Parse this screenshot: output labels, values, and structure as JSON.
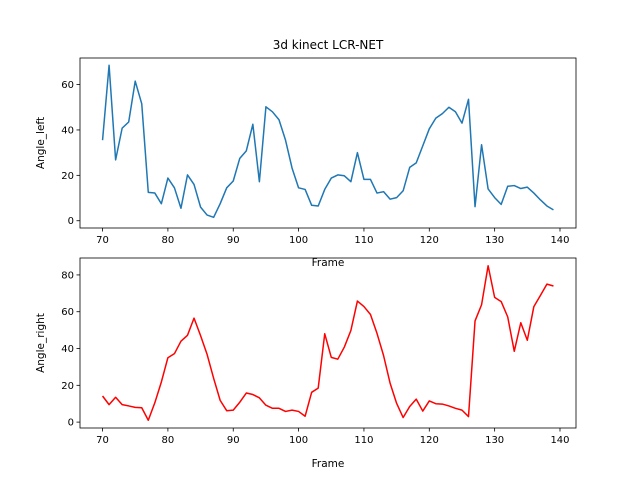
{
  "chart_data": [
    {
      "type": "line",
      "title": "3d kinect LCR-NET",
      "xlabel": "Frame",
      "ylabel": "Angle_left",
      "xlim": [
        66.55,
        142.45
      ],
      "ylim": [
        -3.2,
        71.7
      ],
      "xticks": [
        70,
        80,
        90,
        100,
        110,
        120,
        130,
        140
      ],
      "yticks": [
        0,
        20,
        40,
        60
      ],
      "grid": false,
      "series": [
        {
          "color": "#1f77b4",
          "x": [
            70,
            71,
            72,
            73,
            74,
            75,
            76,
            77,
            78,
            79,
            80,
            81,
            82,
            83,
            84,
            85,
            86,
            87,
            88,
            89,
            90,
            91,
            92,
            93,
            94,
            95,
            96,
            97,
            98,
            99,
            100,
            101,
            102,
            103,
            104,
            105,
            106,
            107,
            108,
            109,
            110,
            111,
            112,
            113,
            114,
            115,
            116,
            117,
            118,
            119,
            120,
            121,
            122,
            123,
            124,
            125,
            126,
            127,
            128,
            129,
            130,
            131,
            132,
            133,
            134,
            135,
            136,
            137,
            138,
            139
          ],
          "y": [
            35.5,
            68.5,
            26.8,
            40.8,
            43.5,
            61.5,
            51.5,
            12.5,
            12.2,
            7.5,
            18.8,
            14.5,
            5.5,
            20.2,
            16.0,
            6.0,
            2.5,
            1.5,
            7.5,
            14.5,
            17.5,
            27.5,
            30.8,
            42.5,
            17.2,
            50.2,
            48.0,
            44.5,
            35.5,
            23.2,
            14.5,
            13.8,
            6.8,
            6.5,
            13.8,
            18.8,
            20.2,
            19.8,
            17.2,
            30.0,
            18.2,
            18.2,
            12.2,
            12.8,
            9.5,
            10.2,
            13.2,
            23.5,
            25.5,
            33.0,
            40.5,
            45.2,
            47.2,
            50.0,
            48.0,
            43.0,
            53.5,
            6.2,
            33.5,
            14.0,
            10.2,
            7.2,
            15.2,
            15.5,
            14.2,
            14.8,
            12.2,
            9.2,
            6.5,
            4.8
          ]
        }
      ]
    },
    {
      "type": "line",
      "title": "",
      "xlabel": "Frame",
      "ylabel": "Angle_right",
      "xlim": [
        66.55,
        142.45
      ],
      "ylim": [
        -3.2,
        89.2
      ],
      "xticks": [
        70,
        80,
        90,
        100,
        110,
        120,
        130,
        140
      ],
      "yticks": [
        0,
        20,
        40,
        60,
        80
      ],
      "grid": false,
      "series": [
        {
          "color": "#ff0000",
          "x": [
            70,
            71,
            72,
            73,
            74,
            75,
            76,
            77,
            78,
            79,
            80,
            81,
            82,
            83,
            84,
            85,
            86,
            87,
            88,
            89,
            90,
            91,
            92,
            93,
            94,
            95,
            96,
            97,
            98,
            99,
            100,
            101,
            102,
            103,
            104,
            105,
            106,
            107,
            108,
            109,
            110,
            111,
            112,
            113,
            114,
            115,
            116,
            117,
            118,
            119,
            120,
            121,
            122,
            123,
            124,
            125,
            126,
            127,
            128,
            129,
            130,
            131,
            132,
            133,
            134,
            135,
            136,
            137,
            138,
            139
          ],
          "y": [
            14.2,
            9.5,
            13.5,
            9.5,
            8.8,
            8.0,
            7.8,
            1.0,
            10.5,
            21.8,
            35.0,
            37.2,
            44.0,
            47.2,
            56.5,
            47.0,
            36.8,
            23.8,
            11.8,
            6.2,
            6.5,
            10.8,
            15.8,
            15.0,
            13.2,
            9.2,
            7.5,
            7.5,
            5.8,
            6.5,
            5.8,
            3.2,
            16.2,
            18.5,
            48.0,
            35.2,
            34.2,
            40.8,
            49.8,
            65.8,
            62.8,
            58.5,
            48.2,
            36.2,
            21.2,
            10.2,
            2.5,
            8.5,
            12.5,
            6.0,
            11.5,
            10.0,
            9.8,
            8.8,
            7.5,
            6.5,
            3.0,
            55.0,
            63.8,
            85.0,
            67.8,
            65.5,
            57.2,
            38.5,
            54.0,
            44.5,
            62.8,
            68.8,
            75.0,
            74.0
          ]
        }
      ]
    }
  ]
}
